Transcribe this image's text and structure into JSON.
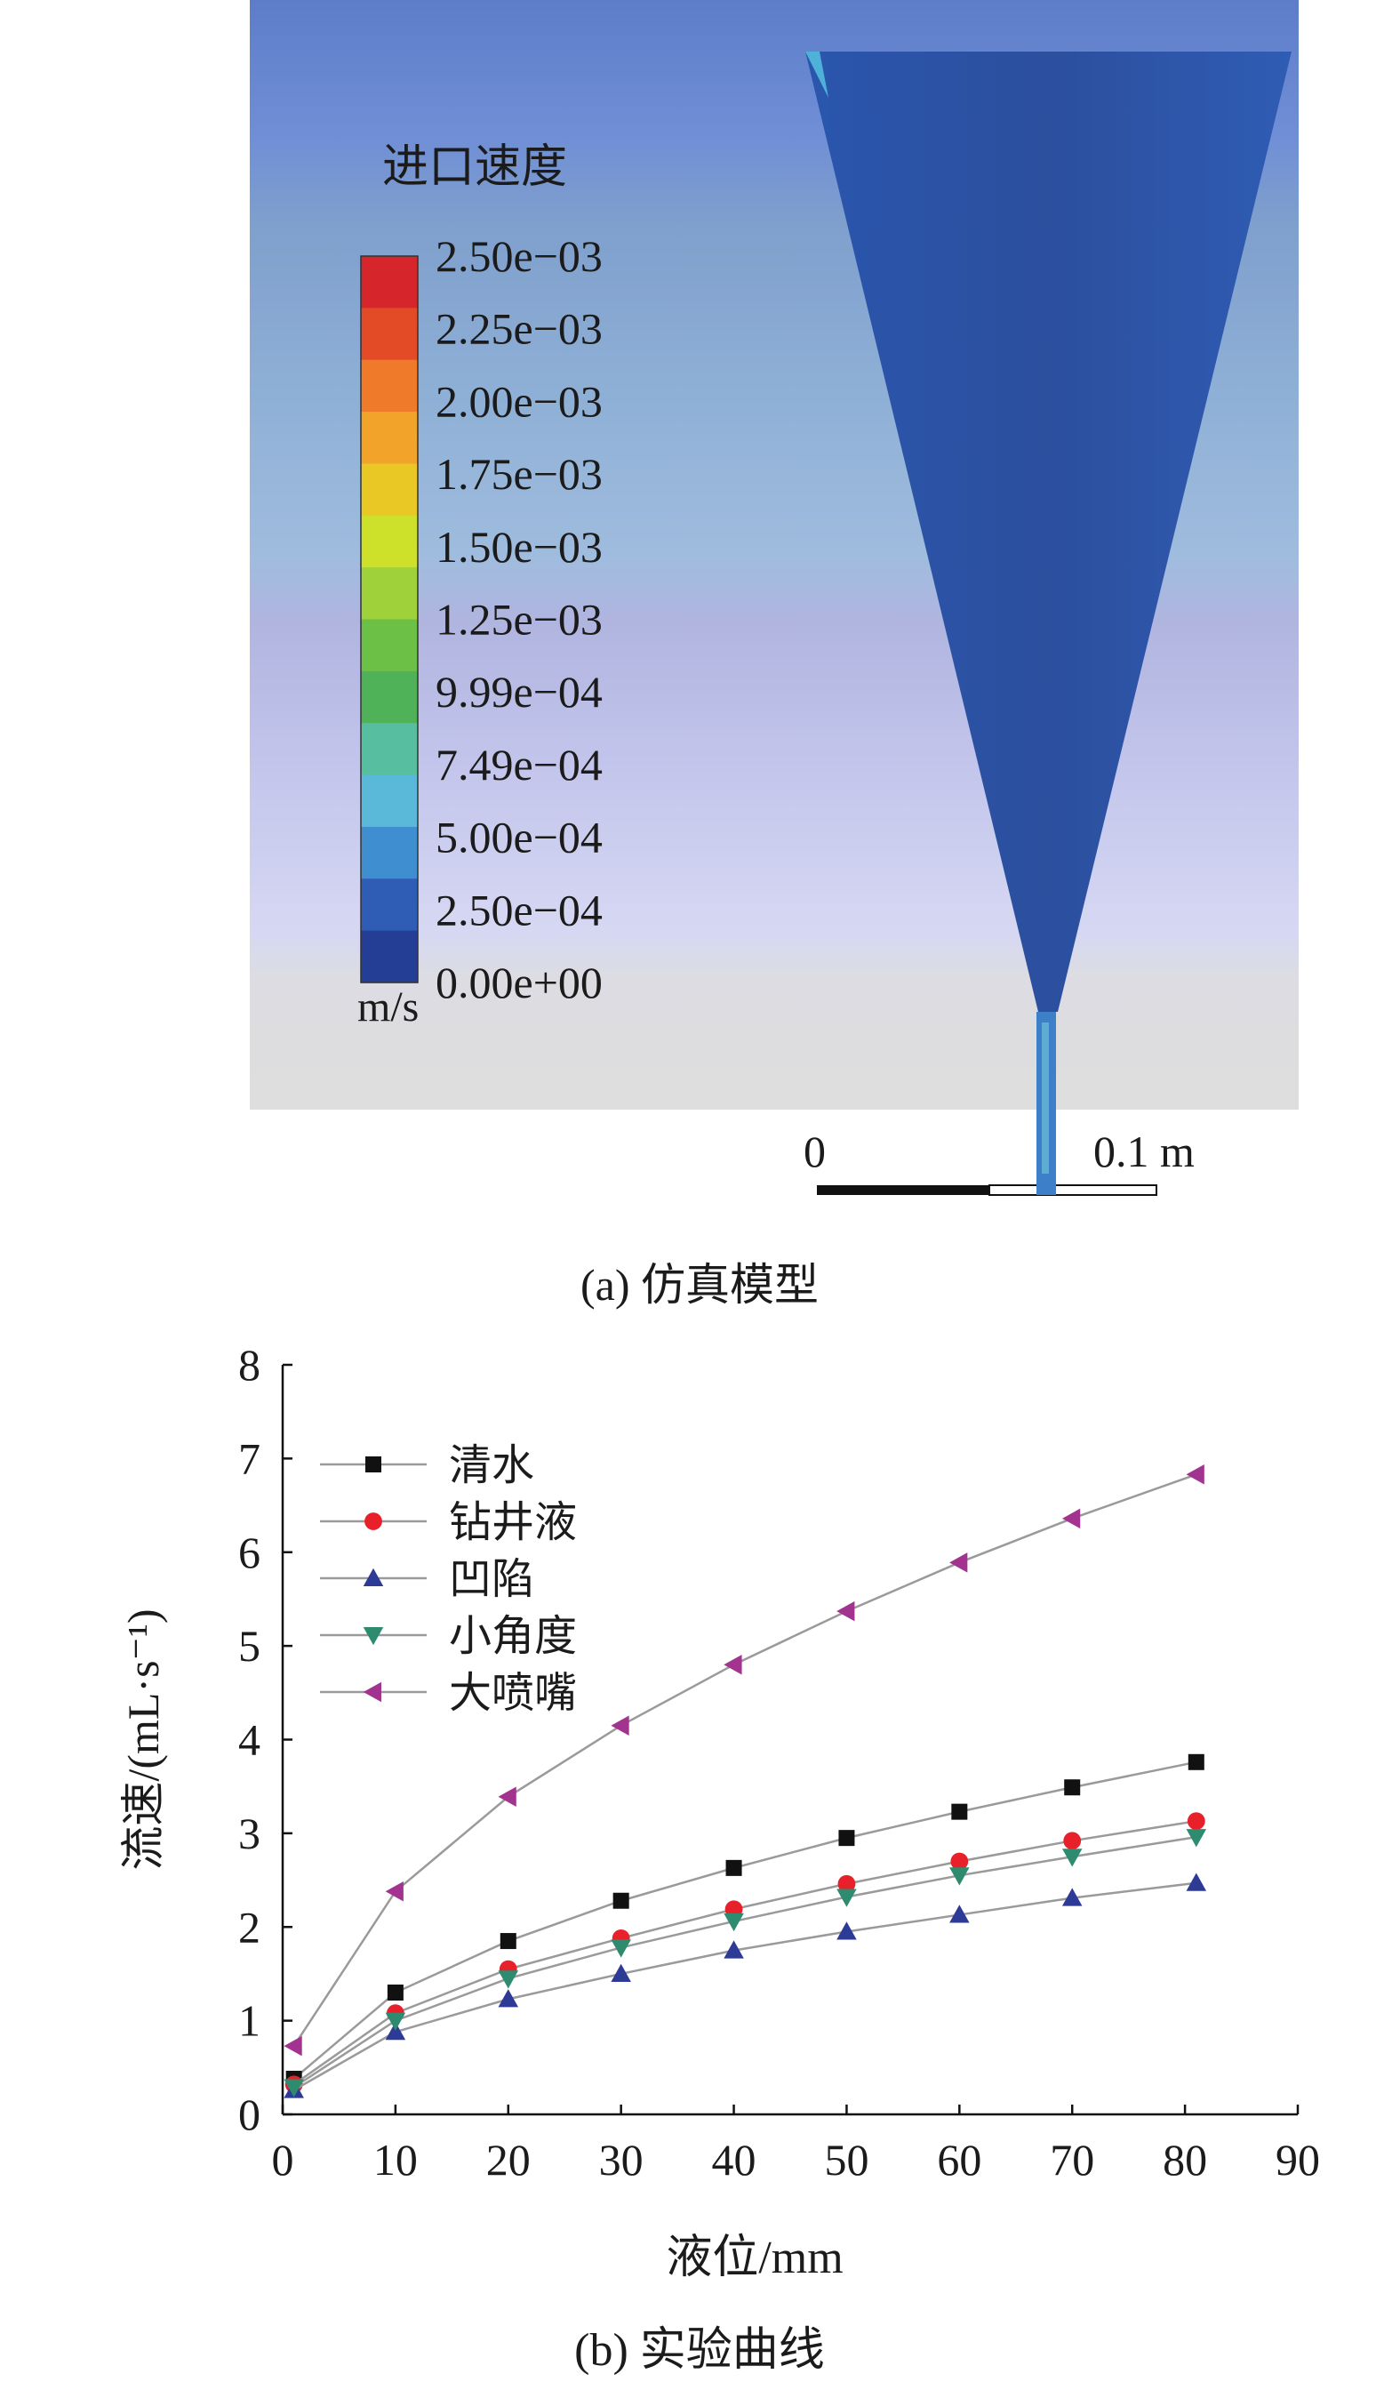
{
  "panel_a": {
    "colorbar_title": "进口速度",
    "colorbar_unit": "m/s",
    "colorbar_ticks": [
      "2.50e−03",
      "2.25e−03",
      "2.00e−03",
      "1.75e−03",
      "1.50e−03",
      "1.25e−03",
      "9.99e−04",
      "7.49e−04",
      "5.00e−04",
      "2.50e−04",
      "0.00e+00"
    ],
    "colorbar_colors": [
      "#d7262b",
      "#e34a26",
      "#ee7a2a",
      "#f2a42a",
      "#e9c826",
      "#cde02a",
      "#9fd13a",
      "#6dc046",
      "#4fb258",
      "#58bea0",
      "#5ab8d9",
      "#3f8fd0",
      "#2f5cb4",
      "#233e94"
    ],
    "scale_bar_start": "0",
    "scale_bar_end": "0.1 m",
    "caption": "(a) 仿真模型"
  },
  "panel_b": {
    "caption": "(b) 实验曲线"
  },
  "chart_data": {
    "type": "line",
    "xlabel": "液位/mm",
    "ylabel": "流速/(mL·s⁻¹)",
    "xlim": [
      0,
      90
    ],
    "ylim": [
      0,
      8
    ],
    "xticks": [
      0,
      10,
      20,
      30,
      40,
      50,
      60,
      70,
      80,
      90
    ],
    "yticks": [
      0,
      1,
      2,
      3,
      4,
      5,
      6,
      7,
      8
    ],
    "grid": false,
    "legend_position": "top-left",
    "x": [
      1,
      10,
      20,
      30,
      40,
      50,
      60,
      70,
      81
    ],
    "series": [
      {
        "name": "清水",
        "color": "#111111",
        "marker": "square",
        "values": [
          0.38,
          1.3,
          1.85,
          2.28,
          2.63,
          2.95,
          3.23,
          3.49,
          3.76
        ]
      },
      {
        "name": "钻井液",
        "color": "#e8202a",
        "marker": "circle",
        "values": [
          0.32,
          1.08,
          1.55,
          1.88,
          2.19,
          2.46,
          2.7,
          2.92,
          3.13
        ]
      },
      {
        "name": "凹陷",
        "color": "#2d3a96",
        "marker": "triangle-up",
        "values": [
          0.26,
          0.88,
          1.23,
          1.5,
          1.75,
          1.95,
          2.13,
          2.31,
          2.47
        ]
      },
      {
        "name": "小角度",
        "color": "#2e8b70",
        "marker": "triangle-down",
        "values": [
          0.29,
          1.0,
          1.45,
          1.78,
          2.06,
          2.32,
          2.55,
          2.75,
          2.96
        ]
      },
      {
        "name": "大喷嘴",
        "color": "#a2348f",
        "marker": "triangle-left",
        "values": [
          0.73,
          2.38,
          3.39,
          4.15,
          4.8,
          5.37,
          5.89,
          6.36,
          6.83
        ]
      }
    ]
  }
}
